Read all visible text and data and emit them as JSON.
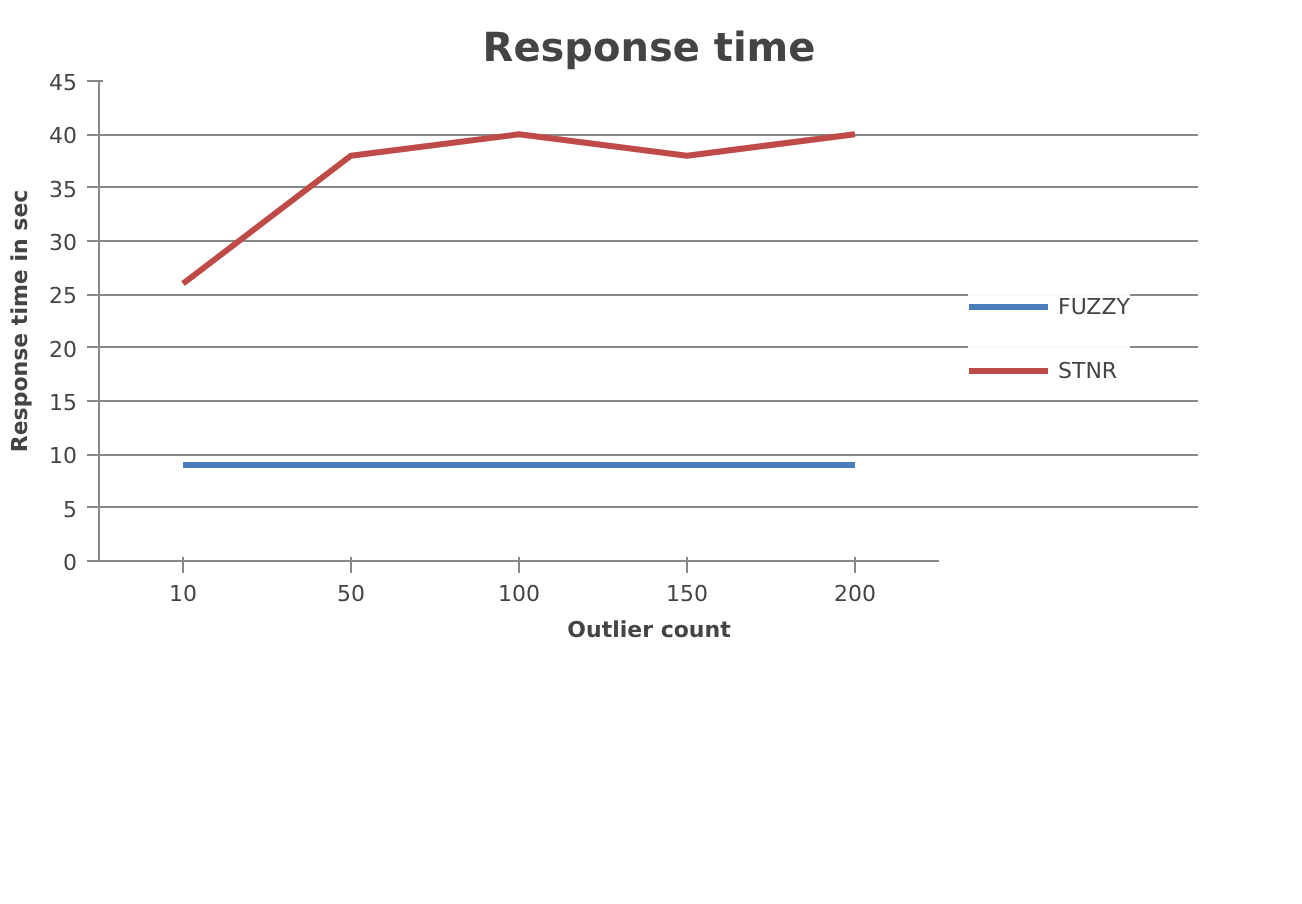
{
  "chart_data": {
    "type": "line",
    "title": "Response time",
    "xlabel": "Outlier count",
    "ylabel": "Response time in sec",
    "categories": [
      "10",
      "50",
      "100",
      "150",
      "200"
    ],
    "series": [
      {
        "name": "FUZZY",
        "color": "#4a7ebb",
        "values": [
          9,
          9,
          9,
          9,
          9
        ]
      },
      {
        "name": "STNR",
        "color": "#be4b48",
        "values": [
          26,
          38,
          40,
          38,
          40
        ]
      }
    ],
    "ylim": [
      0,
      45
    ],
    "yticks": [
      0,
      5,
      10,
      15,
      20,
      25,
      30,
      35,
      40,
      45
    ],
    "grid": "y",
    "legend": "right",
    "marker": "none",
    "line_style": "solid"
  }
}
